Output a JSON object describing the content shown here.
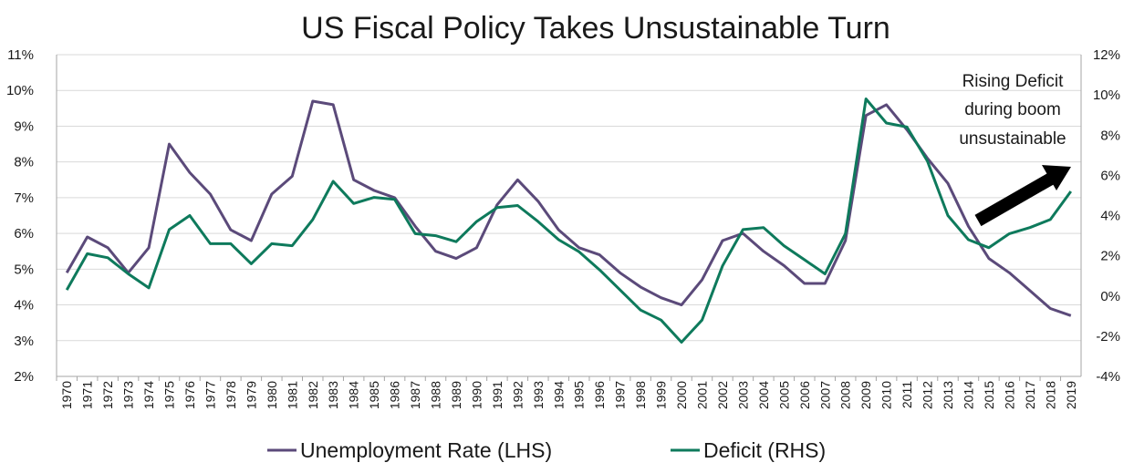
{
  "chart_data": {
    "type": "line",
    "title": "US Fiscal Policy Takes Unsustainable Turn",
    "x": [
      "1970",
      "1971",
      "1972",
      "1973",
      "1974",
      "1975",
      "1976",
      "1977",
      "1978",
      "1979",
      "1980",
      "1981",
      "1982",
      "1983",
      "1984",
      "1985",
      "1986",
      "1987",
      "1988",
      "1989",
      "1990",
      "1991",
      "1992",
      "1993",
      "1994",
      "1995",
      "1996",
      "1997",
      "1998",
      "1999",
      "2000",
      "2001",
      "2002",
      "2003",
      "2004",
      "2005",
      "2006",
      "2007",
      "2008",
      "2009",
      "2010",
      "2011",
      "2012",
      "2013",
      "2014",
      "2015",
      "2016",
      "2017",
      "2018",
      "2019"
    ],
    "y_left_ticks": [
      "2%",
      "3%",
      "4%",
      "5%",
      "6%",
      "7%",
      "8%",
      "9%",
      "10%",
      "11%"
    ],
    "y_right_ticks": [
      "-4%",
      "-2%",
      "0%",
      "2%",
      "4%",
      "6%",
      "8%",
      "10%",
      "12%"
    ],
    "ylim_left": [
      2,
      11
    ],
    "ylim_right": [
      -4,
      12
    ],
    "grid": "horizontal",
    "legend_position": "bottom",
    "series": [
      {
        "name": "Unemployment Rate (LHS)",
        "axis": "left",
        "color": "#5b4a7a",
        "values": [
          4.9,
          5.9,
          5.6,
          4.9,
          5.6,
          8.5,
          7.7,
          7.1,
          6.1,
          5.8,
          7.1,
          7.6,
          9.7,
          9.6,
          7.5,
          7.2,
          7.0,
          6.2,
          5.5,
          5.3,
          5.6,
          6.8,
          7.5,
          6.9,
          6.1,
          5.6,
          5.4,
          4.9,
          4.5,
          4.2,
          4.0,
          4.7,
          5.8,
          6.0,
          5.5,
          5.1,
          4.6,
          4.6,
          5.8,
          9.3,
          9.6,
          8.9,
          8.1,
          7.4,
          6.2,
          5.3,
          4.9,
          4.4,
          3.9,
          3.7
        ]
      },
      {
        "name": "Deficit (RHS)",
        "axis": "right",
        "color": "#0e7a5c",
        "values": [
          0.3,
          2.1,
          1.9,
          1.1,
          0.4,
          3.3,
          4.0,
          2.6,
          2.6,
          1.6,
          2.6,
          2.5,
          3.8,
          5.7,
          4.6,
          4.9,
          4.8,
          3.1,
          3.0,
          2.7,
          3.7,
          4.4,
          4.5,
          3.7,
          2.8,
          2.2,
          1.3,
          0.3,
          -0.7,
          -1.2,
          -2.3,
          -1.2,
          1.5,
          3.3,
          3.4,
          2.5,
          1.8,
          1.1,
          3.1,
          9.8,
          8.6,
          8.4,
          6.7,
          4.0,
          2.8,
          2.4,
          3.1,
          3.4,
          3.8,
          5.2
        ]
      }
    ],
    "annotation": {
      "lines": [
        "Rising Deficit",
        "during boom",
        "unsustainable"
      ]
    }
  }
}
